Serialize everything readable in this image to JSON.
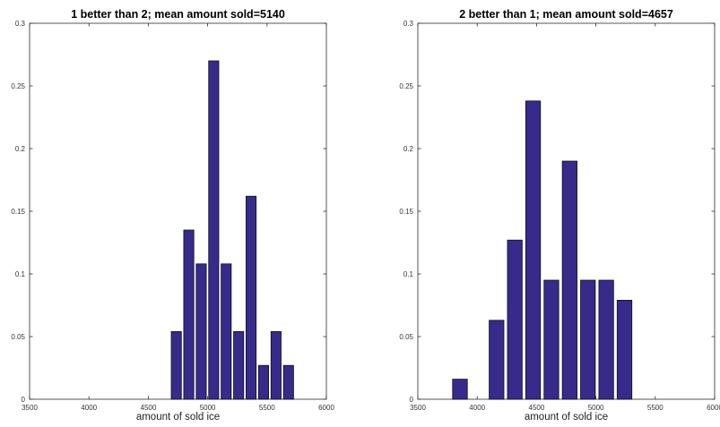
{
  "chart_data": [
    {
      "type": "bar",
      "title": "1 better than 2; mean amount sold=5140",
      "xlabel": "amount of sold ice",
      "ylabel": "",
      "xlim": [
        3500,
        6000
      ],
      "ylim": [
        0,
        0.3
      ],
      "xticks": [
        "3500",
        "4000",
        "4500",
        "5000",
        "5500",
        "6000"
      ],
      "yticks": [
        "0",
        "0.05",
        "0.1",
        "0.15",
        "0.2",
        "0.25",
        "0.3"
      ],
      "bar_width": 85,
      "bars": [
        {
          "x": 4736,
          "value": 0.054
        },
        {
          "x": 4841,
          "value": 0.135
        },
        {
          "x": 4946,
          "value": 0.108
        },
        {
          "x": 5051,
          "value": 0.27
        },
        {
          "x": 5156,
          "value": 0.108
        },
        {
          "x": 5261,
          "value": 0.054
        },
        {
          "x": 5366,
          "value": 0.162
        },
        {
          "x": 5471,
          "value": 0.027
        },
        {
          "x": 5576,
          "value": 0.054
        },
        {
          "x": 5681,
          "value": 0.027
        }
      ]
    },
    {
      "type": "bar",
      "title": "2 better than 1; mean amount sold=4657",
      "xlabel": "amount of sold ice",
      "ylabel": "",
      "xlim": [
        3500,
        6000
      ],
      "ylim": [
        0,
        0.3
      ],
      "xticks": [
        "3500",
        "4000",
        "4500",
        "5000",
        "5500",
        "6000"
      ],
      "yticks": [
        "0",
        "0.05",
        "0.1",
        "0.15",
        "0.2",
        "0.25",
        "0.3"
      ],
      "bar_width": 124,
      "bars": [
        {
          "x": 3855,
          "value": 0.016
        },
        {
          "x": 4009,
          "value": 0
        },
        {
          "x": 4163,
          "value": 0.063
        },
        {
          "x": 4317,
          "value": 0.127
        },
        {
          "x": 4471,
          "value": 0.238
        },
        {
          "x": 4625,
          "value": 0.095
        },
        {
          "x": 4779,
          "value": 0.19
        },
        {
          "x": 4933,
          "value": 0.095
        },
        {
          "x": 5087,
          "value": 0.095
        },
        {
          "x": 5241,
          "value": 0.079
        }
      ]
    }
  ]
}
